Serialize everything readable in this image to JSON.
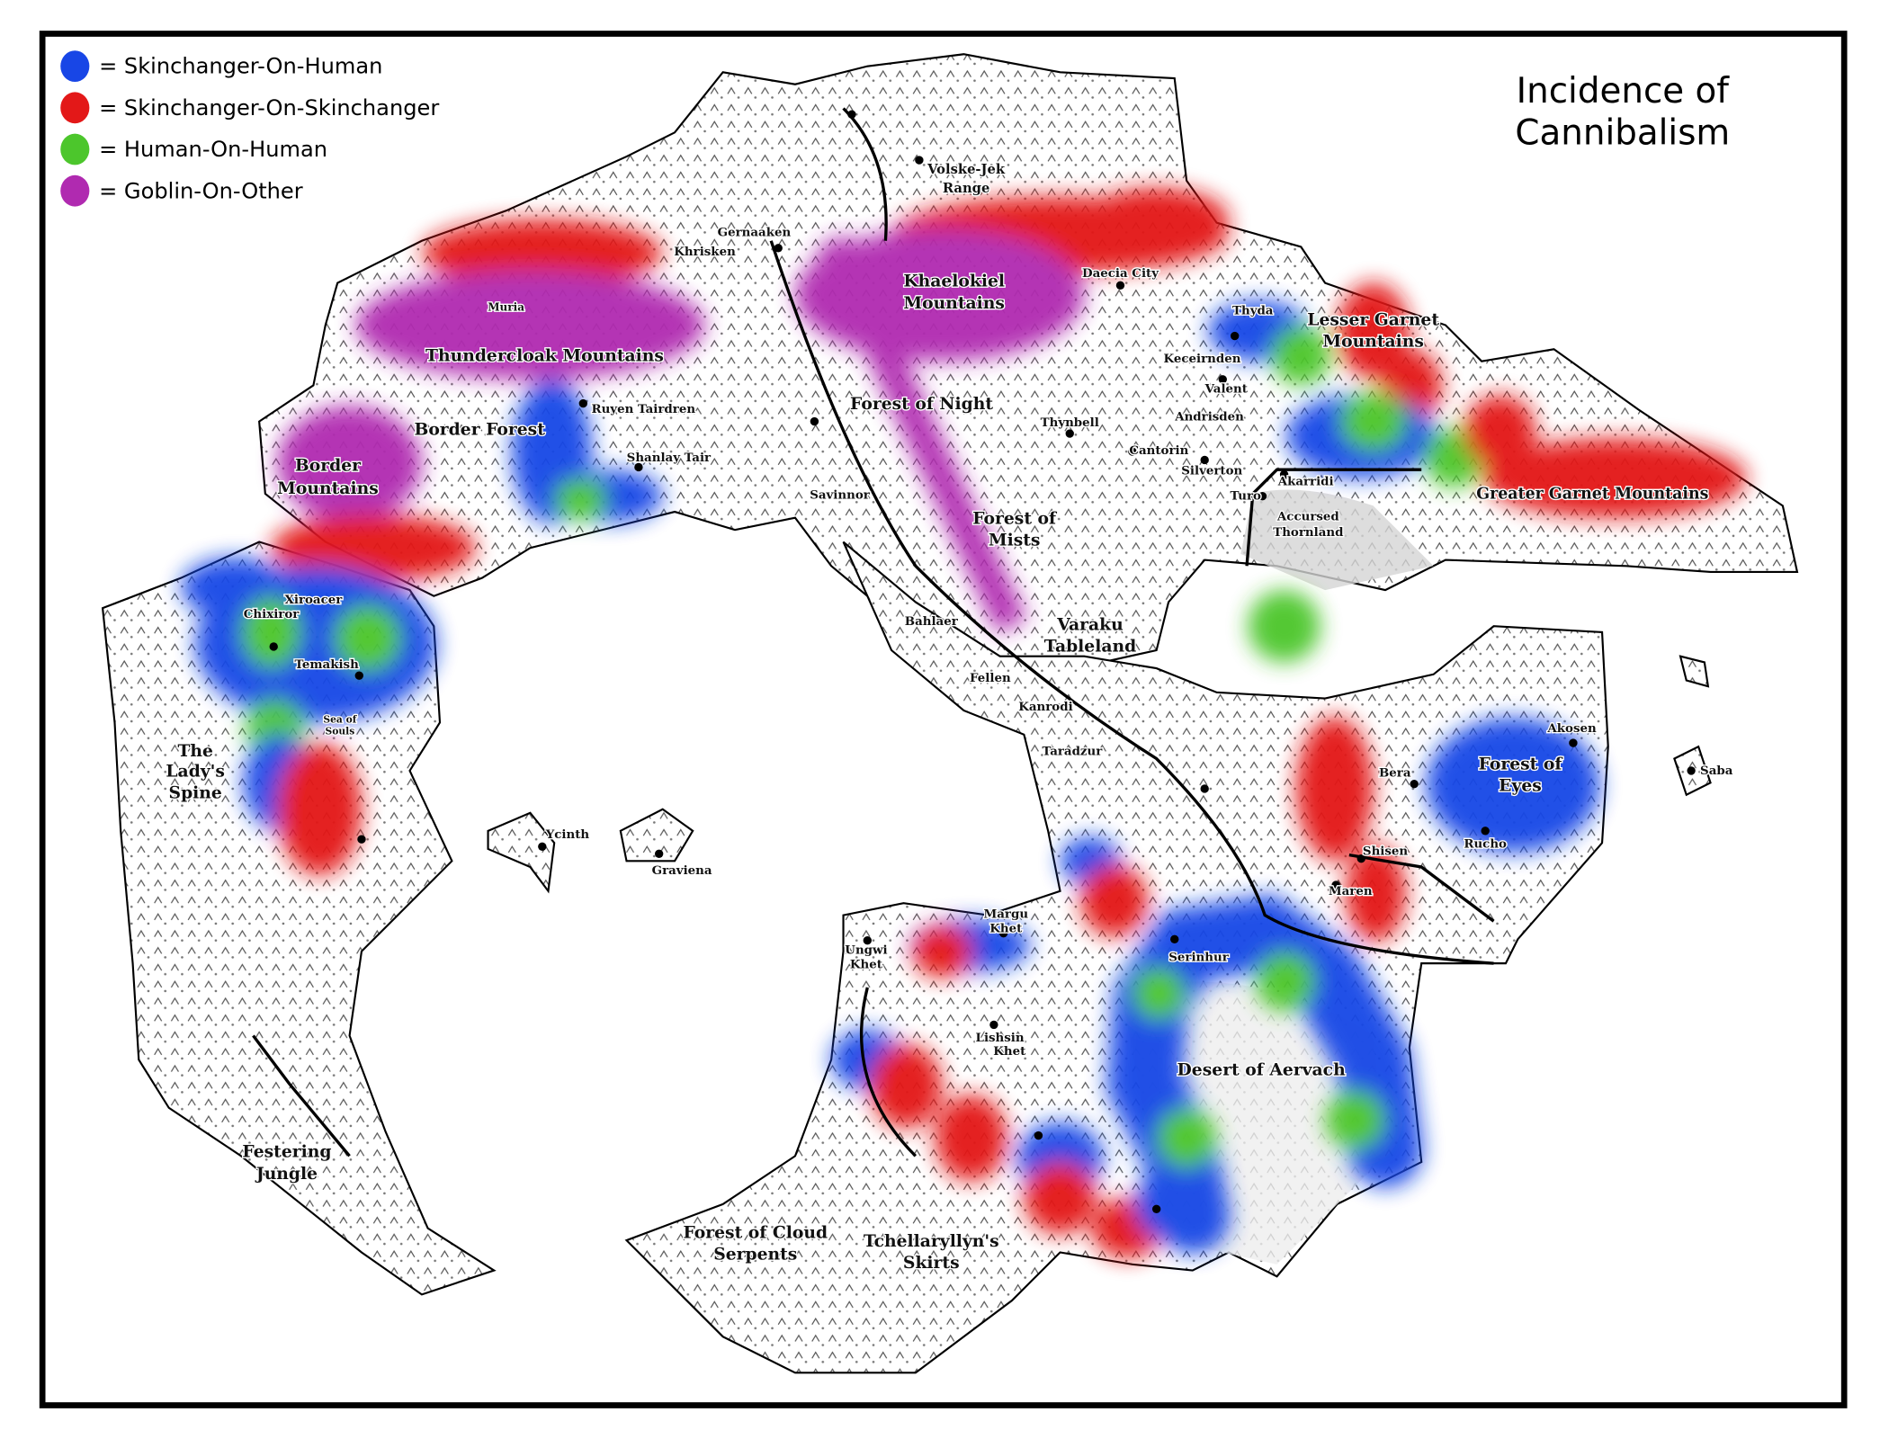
{
  "title": [
    "Incidence of",
    "Cannibalism"
  ],
  "legend": [
    {
      "label": "= Skinchanger-On-Human",
      "color": "#1846e6"
    },
    {
      "label": "= Skinchanger-On-Skinchanger",
      "color": "#e31818"
    },
    {
      "label": "= Human-On-Human",
      "color": "#4cc62c"
    },
    {
      "label": "= Goblin-On-Other",
      "color": "#b02ab0"
    }
  ],
  "labels": [
    "Volske-Jek",
    "Range",
    "Gernaaken",
    "Khrisken",
    "Khaelokiel",
    "Mountains",
    "Daecia City",
    "Thyda",
    "Lesser Garnet",
    "Mountains",
    "Muria",
    "Thundercloak Mountains",
    "Keceirnden",
    "Valent",
    "Ruyen Tairdren",
    "Forest of Night",
    "Andrisden",
    "Thynbell",
    "Border Forest",
    "Shanlay Tair",
    "Cantorin",
    "Silverton",
    "Border",
    "Mountains",
    "Akarridi",
    "Greater Garnet Mountains",
    "Turo",
    "Savinnor",
    "Forest of",
    "Mists",
    "Accursed",
    "Thornland",
    "Xiroacer",
    "Chixiror",
    "Bahlaer",
    "Varaku",
    "Tableland",
    "Temakish",
    "Fellen",
    "Kanrodi",
    "Sea of",
    "Souls",
    "Akosen",
    "Taradzur",
    "The",
    "Lady's",
    "Spine",
    "Forest of",
    "Eyes",
    "Bera",
    "Saba",
    "Ycinth",
    "Rucho",
    "Shisen",
    "Graviena",
    "Maren",
    "Margu",
    "Khet",
    "Serinhur",
    "Ungwi",
    "Khet",
    "Lishsin",
    "Khet",
    "Desert of Aervach",
    "Festering",
    "Jungle",
    "Forest of Cloud",
    "Serpents",
    "Tchellaryllyn's",
    "Skirts"
  ]
}
